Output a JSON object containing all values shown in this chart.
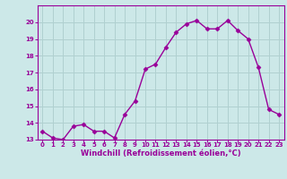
{
  "x": [
    0,
    1,
    2,
    3,
    4,
    5,
    6,
    7,
    8,
    9,
    10,
    11,
    12,
    13,
    14,
    15,
    16,
    17,
    18,
    19,
    20,
    21,
    22,
    23
  ],
  "y": [
    13.5,
    13.1,
    13.0,
    13.8,
    13.9,
    13.5,
    13.5,
    13.1,
    14.5,
    15.3,
    17.2,
    17.5,
    18.5,
    19.4,
    19.9,
    20.1,
    19.6,
    19.6,
    20.1,
    19.5,
    19.0,
    17.3,
    14.8,
    14.5
  ],
  "line_color": "#990099",
  "marker": "D",
  "marker_color": "#990099",
  "bg_color": "#cce8e8",
  "grid_color": "#b0d0d0",
  "xlabel": "Windchill (Refroidissement éolien,°C)",
  "xlabel_color": "#990099",
  "tick_color": "#990099",
  "spine_color": "#990099",
  "ylim": [
    13,
    21
  ],
  "xlim": [
    -0.5,
    23.5
  ],
  "yticks": [
    13,
    14,
    15,
    16,
    17,
    18,
    19,
    20
  ],
  "xticks": [
    0,
    1,
    2,
    3,
    4,
    5,
    6,
    7,
    8,
    9,
    10,
    11,
    12,
    13,
    14,
    15,
    16,
    17,
    18,
    19,
    20,
    21,
    22,
    23
  ],
  "label_fontsize": 6,
  "tick_fontsize": 5,
  "linewidth": 1.0,
  "markersize": 2.5
}
